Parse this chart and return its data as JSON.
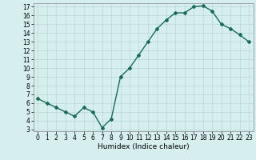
{
  "xlabel": "Humidex (Indice chaleur)",
  "x": [
    0,
    1,
    2,
    3,
    4,
    5,
    6,
    7,
    8,
    9,
    10,
    11,
    12,
    13,
    14,
    15,
    16,
    17,
    18,
    19,
    20,
    21,
    22,
    23
  ],
  "y": [
    6.5,
    6.0,
    5.5,
    5.0,
    4.5,
    5.5,
    5.0,
    3.2,
    4.2,
    9.0,
    10.0,
    11.5,
    13.0,
    14.5,
    15.5,
    16.3,
    16.3,
    17.0,
    17.1,
    16.5,
    15.0,
    14.5,
    13.8,
    13.0
  ],
  "line_color": "#1a6b5a",
  "marker": "D",
  "marker_size": 2,
  "bg_color": "#d6eeee",
  "grid_color": "#b8d8d8",
  "ylim_min": 2.8,
  "ylim_max": 17.4,
  "xlim_min": -0.5,
  "xlim_max": 23.5,
  "yticks": [
    3,
    4,
    5,
    6,
    7,
    8,
    9,
    10,
    11,
    12,
    13,
    14,
    15,
    16,
    17
  ],
  "xticks": [
    0,
    1,
    2,
    3,
    4,
    5,
    6,
    7,
    8,
    9,
    10,
    11,
    12,
    13,
    14,
    15,
    16,
    17,
    18,
    19,
    20,
    21,
    22,
    23
  ],
  "tick_fontsize": 5.5,
  "label_fontsize": 6.5,
  "line_width": 1.0
}
